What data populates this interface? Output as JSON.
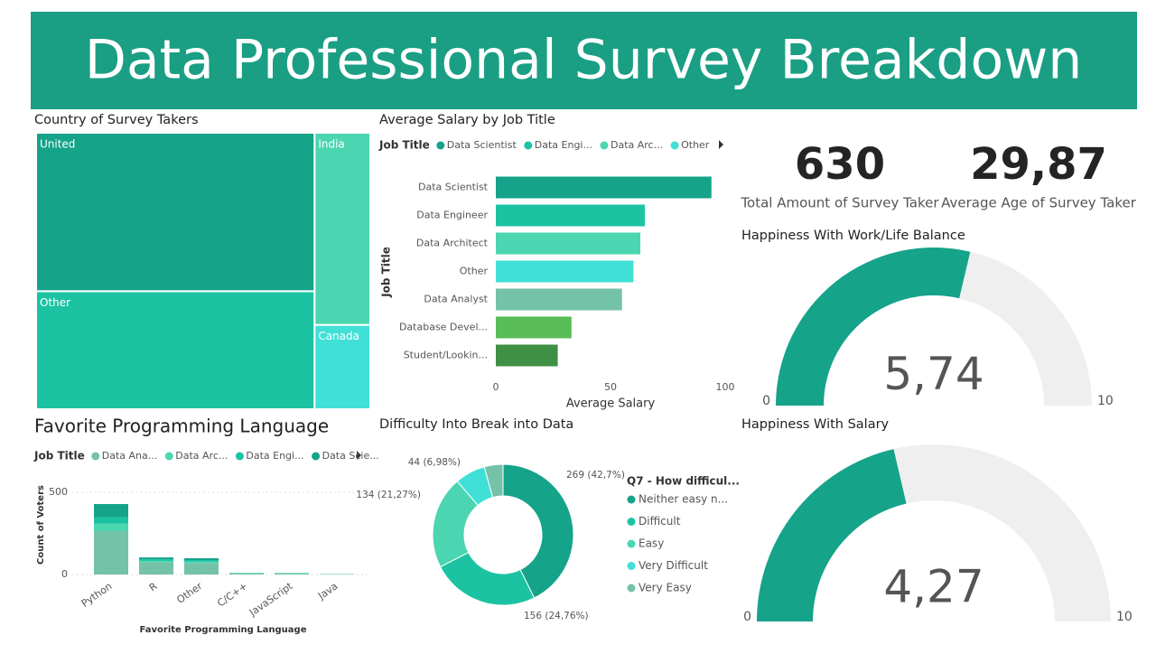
{
  "title": "Data Professional Survey Breakdown",
  "chart_data": [
    {
      "type": "treemap",
      "title": "Country of Survey Takers",
      "categories": [
        "United",
        "Other",
        "India",
        "Canada"
      ],
      "values": [
        301,
        224,
        73,
        32
      ],
      "colors": [
        "#15a38a",
        "#1cc3a3",
        "#4bd6b1",
        "#40e0d6"
      ]
    },
    {
      "type": "hbar",
      "title": "Average Salary by Job Title",
      "legend_title": "Job Title",
      "legend": [
        "Data Scientist",
        "Data Engi...",
        "Data Arc...",
        "Other"
      ],
      "categories": [
        "Data Scientist",
        "Data Engineer",
        "Data Architect",
        "Other",
        "Data Analyst",
        "Database Devel...",
        "Student/Lookin..."
      ],
      "values": [
        94,
        65,
        63,
        60,
        55,
        33,
        27
      ],
      "colors": [
        "#15a38a",
        "#1cc3a3",
        "#4bd6b1",
        "#40e0d6",
        "#74c2a8",
        "#58bd56",
        "#3f8f45"
      ],
      "xlim": [
        0,
        100
      ],
      "xticks": [
        0,
        50,
        100
      ],
      "xlabel": "Average Salary",
      "ylabel": "Job Title"
    },
    {
      "type": "kpi",
      "value": 630,
      "label": "Total Amount of Survey Taker"
    },
    {
      "type": "kpi",
      "value": 29.87,
      "value_label": "29,87",
      "label": "Average Age of Survey Taker"
    },
    {
      "type": "gauge",
      "title": "Happiness With Work/Life Balance",
      "value": 5.74,
      "value_label": "5,74",
      "min": 0,
      "max": 10,
      "color": "#15a38a",
      "track_color": "#efefef"
    },
    {
      "type": "stacked_bar",
      "title": "Favorite Programming Language",
      "legend_title": "Job Title",
      "categories": [
        "Python",
        "R",
        "Other",
        "C/C++",
        "JavaScript",
        "Java"
      ],
      "series": [
        {
          "name": "Data Ana...",
          "color": "#74c2a8",
          "values": [
            264,
            75,
            70,
            5,
            5,
            2
          ]
        },
        {
          "name": "Data Arc...",
          "color": "#4bd6b1",
          "values": [
            45,
            8,
            8,
            2,
            1,
            0
          ]
        },
        {
          "name": "Data Engi...",
          "color": "#1cc3a3",
          "values": [
            40,
            10,
            10,
            2,
            2,
            1
          ]
        },
        {
          "name": "Data Scie...",
          "color": "#15a38a",
          "values": [
            80,
            11,
            11,
            1,
            1,
            0
          ]
        }
      ],
      "ylim": [
        0,
        550
      ],
      "yticks": [
        0,
        500
      ],
      "grid": true,
      "xlabel": "Favorite Programming Language",
      "ylabel": "Count of Voters"
    },
    {
      "type": "donut",
      "title": "Difficulty Into Break into Data",
      "legend_title": "Q7 - How difficul...",
      "categories": [
        "Neither easy n...",
        "Difficult",
        "Easy",
        "Very Difficult",
        "Very Easy"
      ],
      "values": [
        269,
        156,
        134,
        44,
        27
      ],
      "value_labels": [
        "269 (42,7%)",
        "156 (24,76%)",
        "134 (21,27%)",
        "44 (6,98%)",
        null
      ],
      "colors": [
        "#15a38a",
        "#1cc3a3",
        "#4bd6b1",
        "#40e0d6",
        "#74c2a8"
      ]
    },
    {
      "type": "gauge",
      "title": "Happiness With Salary",
      "value": 4.27,
      "value_label": "4,27",
      "min": 0,
      "max": 10,
      "color": "#15a38a",
      "track_color": "#efefef"
    }
  ]
}
